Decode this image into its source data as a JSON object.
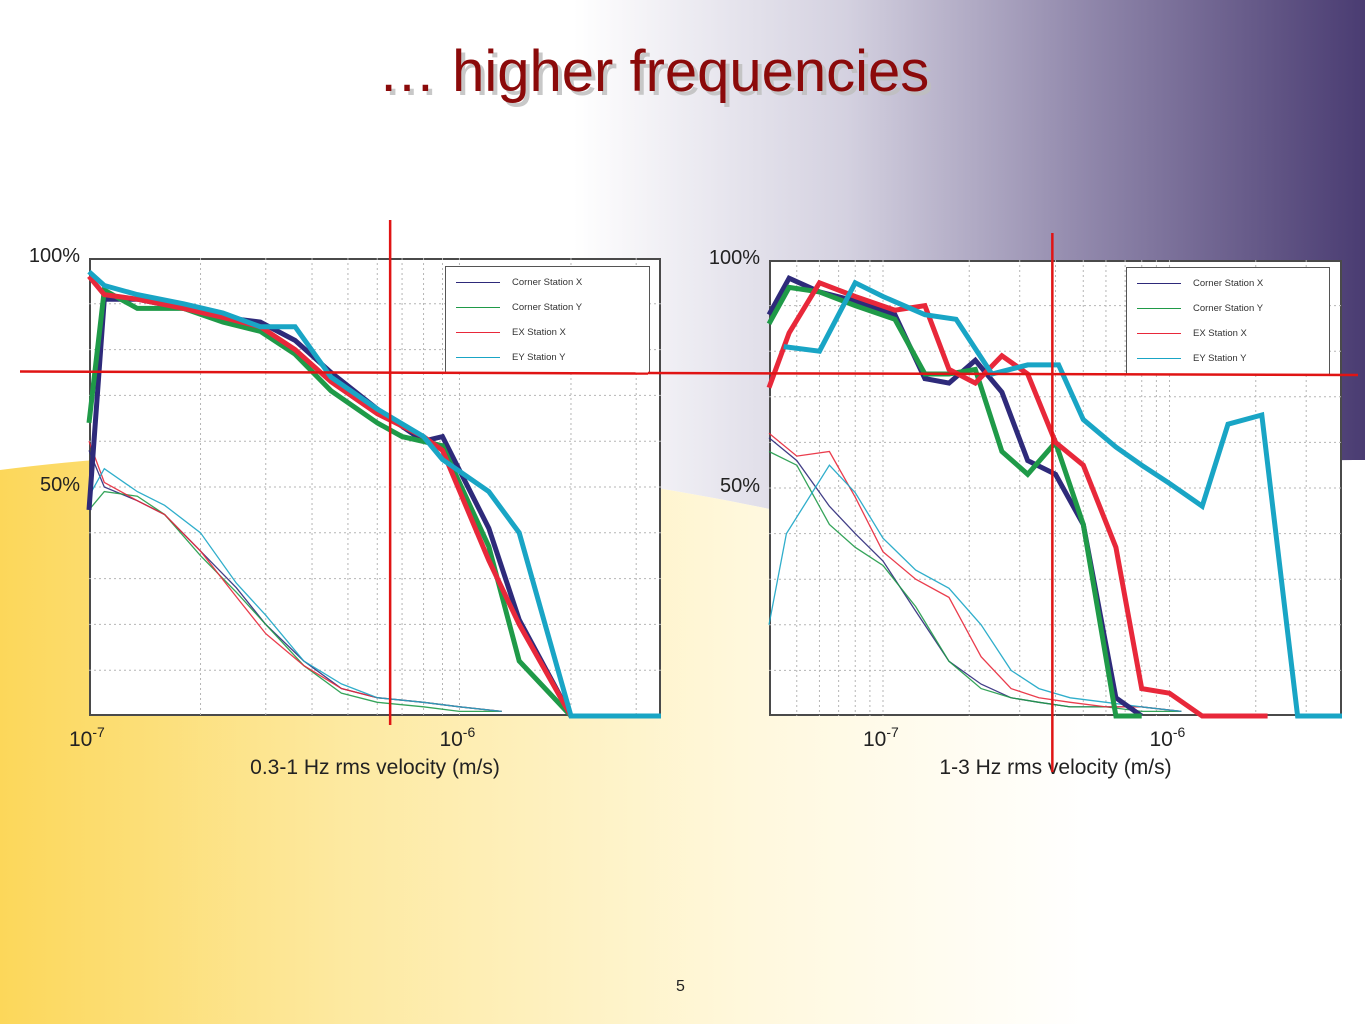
{
  "slide": {
    "title": "… higher frequencies",
    "page_number": "5"
  },
  "colors": {
    "corner_x": "#2e2a7a",
    "corner_y": "#1f9a48",
    "ex_x": "#e8283a",
    "ey_y": "#19a5c5",
    "marker": "#e01414",
    "title": "#8b0a0a"
  },
  "chart_data": [
    {
      "type": "line",
      "xscale": "log",
      "xlim": [
        1e-07,
        3.5e-06
      ],
      "ylim": [
        0,
        100
      ],
      "xlabel": "0.3-1 Hz rms velocity (m/s)",
      "yticks": [
        {
          "value": 100,
          "label": "100%"
        },
        {
          "value": 50,
          "label": "50%"
        }
      ],
      "xticks": [
        {
          "value": 1e-07,
          "base": "10",
          "exp": "-7"
        },
        {
          "value": 1e-06,
          "base": "10",
          "exp": "-6"
        }
      ],
      "grid": true,
      "legend_position": "top-right",
      "legend": [
        "Corner Station X",
        "Corner Station Y",
        "EX Station X",
        "EY Station Y"
      ],
      "series": [
        {
          "key": "corner_x",
          "name": "Corner Station X",
          "weight": "thick",
          "color": "#2e2a7a",
          "x": [
            1e-07,
            1.1e-07,
            1.35e-07,
            1.8e-07,
            2.3e-07,
            2.9e-07,
            3.6e-07,
            4.5e-07,
            6e-07,
            8e-07,
            9e-07,
            1.2e-06,
            1.45e-06,
            2e-06,
            3.5e-06
          ],
          "y": [
            45,
            91,
            91,
            89,
            87,
            86,
            82,
            75,
            67,
            60,
            61,
            41,
            21,
            0,
            0
          ]
        },
        {
          "key": "corner_y",
          "name": "Corner Station Y",
          "weight": "thick",
          "color": "#1f9a48",
          "x": [
            1e-07,
            1.1e-07,
            1.35e-07,
            1.8e-07,
            2.3e-07,
            2.9e-07,
            3.6e-07,
            4.5e-07,
            6e-07,
            7e-07,
            9e-07,
            1.2e-06,
            1.45e-06,
            2e-06,
            3.5e-06
          ],
          "y": [
            64,
            93,
            89,
            89,
            86,
            84,
            79,
            71,
            64,
            61,
            59,
            37,
            12,
            0,
            0
          ]
        },
        {
          "key": "ex_x",
          "name": "EX Station X",
          "weight": "thick",
          "color": "#e8283a",
          "x": [
            1e-07,
            1.1e-07,
            1.35e-07,
            1.8e-07,
            2.3e-07,
            2.9e-07,
            3.6e-07,
            4.5e-07,
            6e-07,
            8e-07,
            9e-07,
            1.2e-06,
            1.45e-06,
            2e-06,
            3.5e-06
          ],
          "y": [
            96,
            92,
            91,
            89,
            87,
            85,
            80,
            73,
            66,
            61,
            58,
            34,
            20,
            0,
            0
          ]
        },
        {
          "key": "ey_y",
          "name": "EY Station Y",
          "weight": "thick",
          "color": "#19a5c5",
          "x": [
            1e-07,
            1.1e-07,
            1.35e-07,
            1.8e-07,
            2.3e-07,
            2.9e-07,
            3.6e-07,
            4.5e-07,
            6e-07,
            8e-07,
            9e-07,
            1.2e-06,
            1.45e-06,
            2e-06,
            3.5e-06
          ],
          "y": [
            97,
            94,
            92,
            90,
            88,
            85,
            85,
            74,
            67,
            61,
            56,
            49,
            40,
            0,
            0
          ]
        },
        {
          "key": "corner_x",
          "name": "Corner Station X",
          "weight": "thin",
          "color": "#2e2a7a",
          "x": [
            1e-07,
            1.1e-07,
            1.35e-07,
            1.6e-07,
            2e-07,
            2.5e-07,
            3e-07,
            3.8e-07,
            4.8e-07,
            6e-07,
            8e-07,
            1e-06,
            1.3e-06
          ],
          "y": [
            58,
            50,
            47,
            44,
            36,
            28,
            20,
            12,
            6,
            4,
            3,
            2,
            1
          ]
        },
        {
          "key": "corner_y",
          "name": "Corner Station Y",
          "weight": "thin",
          "color": "#1f9a48",
          "x": [
            1e-07,
            1.1e-07,
            1.35e-07,
            1.6e-07,
            2e-07,
            2.5e-07,
            3e-07,
            3.8e-07,
            4.8e-07,
            6e-07,
            8e-07,
            1e-06,
            1.3e-06
          ],
          "y": [
            45,
            49,
            48,
            44,
            35,
            27,
            20,
            11,
            5,
            3,
            2,
            1,
            1
          ]
        },
        {
          "key": "ex_x",
          "name": "EX Station X",
          "weight": "thin",
          "color": "#e8283a",
          "x": [
            1e-07,
            1.1e-07,
            1.35e-07,
            1.6e-07,
            2e-07,
            2.5e-07,
            3e-07,
            3.8e-07,
            4.8e-07,
            6e-07,
            8e-07,
            1e-06,
            1.3e-06
          ],
          "y": [
            60,
            51,
            47,
            44,
            36,
            26,
            18,
            11,
            6,
            4,
            3,
            2,
            1
          ]
        },
        {
          "key": "ey_y",
          "name": "EY Station Y",
          "weight": "thin",
          "color": "#19a5c5",
          "x": [
            1e-07,
            1.1e-07,
            1.35e-07,
            1.6e-07,
            2e-07,
            2.5e-07,
            3e-07,
            3.8e-07,
            4.8e-07,
            6e-07,
            8e-07,
            1e-06,
            1.3e-06
          ],
          "y": [
            48,
            54,
            49,
            46,
            40,
            29,
            22,
            12,
            7,
            4,
            3,
            2,
            1
          ]
        }
      ],
      "markers": {
        "x": 6.5e-07,
        "y": 75
      }
    },
    {
      "type": "line",
      "xscale": "log",
      "xlim": [
        4e-08,
        4e-06
      ],
      "ylim": [
        0,
        100
      ],
      "xlabel": "1-3 Hz rms velocity (m/s)",
      "yticks": [
        {
          "value": 100,
          "label": "100%"
        },
        {
          "value": 50,
          "label": "50%"
        }
      ],
      "xticks": [
        {
          "value": 1e-07,
          "base": "10",
          "exp": "-7"
        },
        {
          "value": 1e-06,
          "base": "10",
          "exp": "-6"
        }
      ],
      "grid": true,
      "legend_position": "top-right",
      "legend": [
        "Corner Station X",
        "Corner Station Y",
        "EX Station X",
        "EY Station Y"
      ],
      "series": [
        {
          "key": "corner_x",
          "name": "Corner Station X",
          "weight": "thick",
          "color": "#2e2a7a",
          "x": [
            4e-08,
            4.7e-08,
            6e-08,
            8e-08,
            1.1e-07,
            1.4e-07,
            1.7e-07,
            2.1e-07,
            2.6e-07,
            3.2e-07,
            4e-07,
            5e-07,
            6.5e-07,
            8e-07
          ],
          "y": [
            88,
            96,
            93,
            91,
            88,
            74,
            73,
            78,
            71,
            56,
            53,
            42,
            4,
            0
          ]
        },
        {
          "key": "corner_y",
          "name": "Corner Station Y",
          "weight": "thick",
          "color": "#1f9a48",
          "x": [
            4e-08,
            4.7e-08,
            6e-08,
            8e-08,
            1.1e-07,
            1.4e-07,
            1.7e-07,
            2.1e-07,
            2.6e-07,
            3.2e-07,
            4e-07,
            5e-07,
            6.5e-07,
            8e-07
          ],
          "y": [
            86,
            94,
            93,
            90,
            87,
            75,
            75,
            76,
            58,
            53,
            60,
            42,
            0,
            0
          ]
        },
        {
          "key": "ex_x",
          "name": "EX Station X",
          "weight": "thick",
          "color": "#e8283a",
          "x": [
            4e-08,
            4.7e-08,
            6e-08,
            8e-08,
            1.1e-07,
            1.4e-07,
            1.7e-07,
            2.1e-07,
            2.6e-07,
            3.2e-07,
            4e-07,
            5e-07,
            6.5e-07,
            8e-07,
            1e-06,
            1.3e-06,
            2.2e-06
          ],
          "y": [
            72,
            84,
            95,
            92,
            89,
            90,
            76,
            73,
            79,
            75,
            60,
            55,
            37,
            6,
            5,
            0,
            0
          ]
        },
        {
          "key": "ey_y",
          "name": "EY Station Y",
          "weight": "thick",
          "color": "#19a5c5",
          "x": [
            4.5e-08,
            6e-08,
            8e-08,
            1e-07,
            1.4e-07,
            1.8e-07,
            2.4e-07,
            3.2e-07,
            4.1e-07,
            5e-07,
            6.5e-07,
            8e-07,
            1e-06,
            1.3e-06,
            1.6e-06,
            2.1e-06,
            2.8e-06,
            3.5e-06,
            4e-06
          ],
          "y": [
            81,
            80,
            95,
            92,
            88,
            87,
            75,
            77,
            77,
            65,
            59,
            55,
            51,
            46,
            64,
            66,
            0,
            0,
            0
          ]
        },
        {
          "key": "corner_x",
          "name": "Corner Station X",
          "weight": "thin",
          "color": "#2e2a7a",
          "x": [
            4e-08,
            5e-08,
            6.5e-08,
            8e-08,
            1e-07,
            1.3e-07,
            1.7e-07,
            2.2e-07,
            2.8e-07,
            3.5e-07,
            4.5e-07,
            6e-07,
            8e-07,
            1.1e-06
          ],
          "y": [
            61,
            56,
            46,
            40,
            34,
            23,
            12,
            7,
            4,
            3,
            2,
            2,
            2,
            1
          ]
        },
        {
          "key": "corner_y",
          "name": "Corner Station Y",
          "weight": "thin",
          "color": "#1f9a48",
          "x": [
            4e-08,
            5e-08,
            6.5e-08,
            8e-08,
            1e-07,
            1.3e-07,
            1.7e-07,
            2.2e-07,
            2.8e-07,
            3.5e-07,
            4.5e-07,
            6e-07,
            8e-07,
            1.1e-06
          ],
          "y": [
            58,
            55,
            42,
            37,
            33,
            24,
            12,
            6,
            4,
            3,
            2,
            2,
            1,
            1
          ]
        },
        {
          "key": "ex_x",
          "name": "EX Station X",
          "weight": "thin",
          "color": "#e8283a",
          "x": [
            4e-08,
            5e-08,
            6.5e-08,
            8e-08,
            1e-07,
            1.3e-07,
            1.7e-07,
            2.2e-07,
            2.8e-07,
            3.5e-07,
            4.5e-07,
            6e-07,
            8e-07,
            1.1e-06
          ],
          "y": [
            62,
            57,
            58,
            48,
            36,
            30,
            26,
            13,
            6,
            4,
            3,
            2,
            2,
            1
          ]
        },
        {
          "key": "ey_y",
          "name": "EY Station Y",
          "weight": "thin",
          "color": "#19a5c5",
          "x": [
            4e-08,
            4.6e-08,
            6.5e-08,
            8e-08,
            1e-07,
            1.3e-07,
            1.7e-07,
            2.2e-07,
            2.8e-07,
            3.5e-07,
            4.5e-07,
            6e-07,
            8e-07,
            1.1e-06
          ],
          "y": [
            20,
            40,
            55,
            49,
            39,
            32,
            28,
            20,
            10,
            6,
            4,
            3,
            2,
            1
          ]
        }
      ],
      "markers": {
        "x": 3.9e-07,
        "y": 75
      }
    }
  ]
}
